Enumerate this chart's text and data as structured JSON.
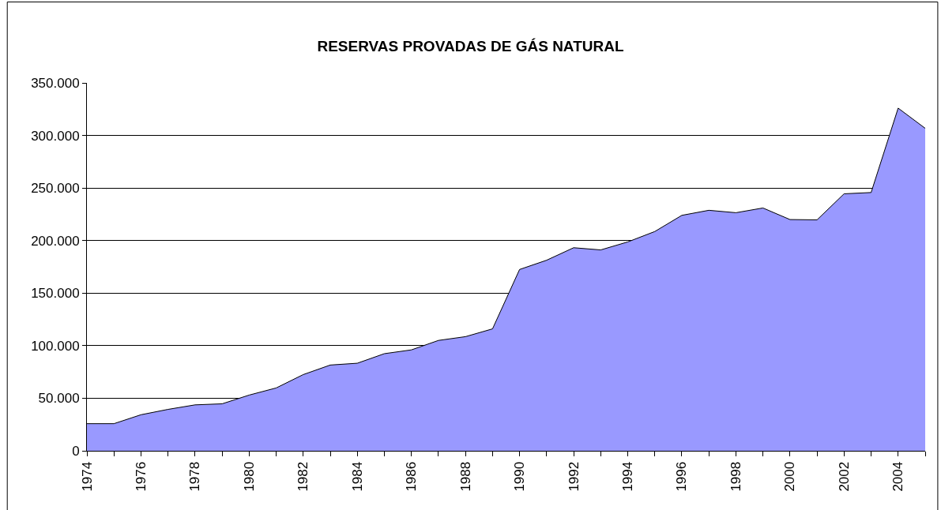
{
  "chart_data": {
    "type": "area",
    "title": "RESERVAS PROVADAS DE GÁS NATURAL",
    "x": [
      1974,
      1975,
      1976,
      1977,
      1978,
      1979,
      1980,
      1981,
      1982,
      1983,
      1984,
      1985,
      1986,
      1987,
      1988,
      1989,
      1990,
      1991,
      1992,
      1993,
      1994,
      1995,
      1996,
      1997,
      1998,
      1999,
      2000,
      2001,
      2002,
      2003,
      2004,
      2005
    ],
    "series": [
      {
        "color": "#9999ff",
        "values": [
          25800,
          25800,
          34300,
          39400,
          43700,
          44700,
          53000,
          59800,
          72500,
          81600,
          83300,
          92400,
          96000,
          105000,
          108600,
          116000,
          172500,
          181300,
          193200,
          191100,
          198700,
          208600,
          224000,
          228800,
          226500,
          231000,
          220000,
          219700,
          244500,
          245700,
          326000,
          306800
        ]
      }
    ],
    "xlim": [
      1974,
      2005
    ],
    "xticks": [
      {
        "value": 1974,
        "label": "1974"
      },
      {
        "value": 1975,
        "label": null
      },
      {
        "value": 1976,
        "label": "1976"
      },
      {
        "value": 1977,
        "label": null
      },
      {
        "value": 1978,
        "label": "1978"
      },
      {
        "value": 1979,
        "label": null
      },
      {
        "value": 1980,
        "label": "1980"
      },
      {
        "value": 1981,
        "label": null
      },
      {
        "value": 1982,
        "label": "1982"
      },
      {
        "value": 1983,
        "label": null
      },
      {
        "value": 1984,
        "label": "1984"
      },
      {
        "value": 1985,
        "label": null
      },
      {
        "value": 1986,
        "label": "1986"
      },
      {
        "value": 1987,
        "label": null
      },
      {
        "value": 1988,
        "label": "1988"
      },
      {
        "value": 1989,
        "label": null
      },
      {
        "value": 1990,
        "label": "1990"
      },
      {
        "value": 1991,
        "label": null
      },
      {
        "value": 1992,
        "label": "1992"
      },
      {
        "value": 1993,
        "label": null
      },
      {
        "value": 1994,
        "label": "1994"
      },
      {
        "value": 1995,
        "label": null
      },
      {
        "value": 1996,
        "label": "1996"
      },
      {
        "value": 1997,
        "label": null
      },
      {
        "value": 1998,
        "label": "1998"
      },
      {
        "value": 1999,
        "label": null
      },
      {
        "value": 2000,
        "label": "2000"
      },
      {
        "value": 2001,
        "label": null
      },
      {
        "value": 2002,
        "label": "2002"
      },
      {
        "value": 2003,
        "label": null
      },
      {
        "value": 2004,
        "label": "2004"
      },
      {
        "value": 2005,
        "label": null
      }
    ],
    "ylim": [
      0,
      350000
    ],
    "yticks": [
      0,
      {
        "value": 50000,
        "label": "50.000"
      },
      {
        "value": 100000,
        "label": "100.000"
      },
      {
        "value": 150000,
        "label": "150.000"
      },
      {
        "value": 200000,
        "label": "200.000"
      },
      {
        "value": 250000,
        "label": "250.000"
      },
      {
        "value": 300000,
        "label": "300.000"
      },
      {
        "value": 350000,
        "label": "350.000"
      }
    ],
    "grid": "y"
  }
}
